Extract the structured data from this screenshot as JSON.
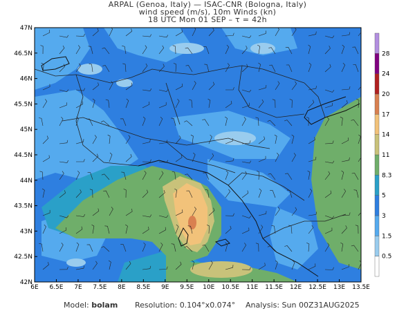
{
  "header": {
    "line1": "ARPAL (Genoa, Italy)  —  ISAC-CNR (Bologna, Italy)",
    "line2": "wind speed (m/s), 10m Winds (kn)",
    "line3": "18 UTC Mon 01 SEP  –  τ = 42h"
  },
  "axes": {
    "x_labels": [
      "6E",
      "6.5E",
      "7E",
      "7.5E",
      "8E",
      "8.5E",
      "9E",
      "9.5E",
      "10E",
      "10.5E",
      "11E",
      "11.5E",
      "12E",
      "12.5E",
      "13E",
      "13.5E"
    ],
    "y_labels": [
      "47N",
      "46.5N",
      "46N",
      "45.5N",
      "45N",
      "44.5N",
      "44N",
      "43.5N",
      "43N",
      "42.5N",
      "42N"
    ],
    "x_range": [
      6,
      13.5
    ],
    "y_range": [
      42,
      47
    ]
  },
  "colorbar": {
    "labels": [
      "28",
      "24",
      "20",
      "17",
      "14",
      "11",
      "8.3",
      "5",
      "3",
      "1.5",
      "0.5"
    ],
    "colors": [
      "#ffffff",
      "#99ccee",
      "#55aaee",
      "#2e7fe0",
      "#2aa0c8",
      "#6fae6a",
      "#c9c27a",
      "#f2c27a",
      "#d98050",
      "#b02020",
      "#800080",
      "#b28ee0"
    ]
  },
  "footer": {
    "model_label": "Model:",
    "model_value": "bolam",
    "resolution_label": "Resolution:",
    "resolution_value": "0.104°x0.074°",
    "analysis_label": "Analysis:",
    "analysis_value": "Sun 00Z31AUG2025"
  }
}
